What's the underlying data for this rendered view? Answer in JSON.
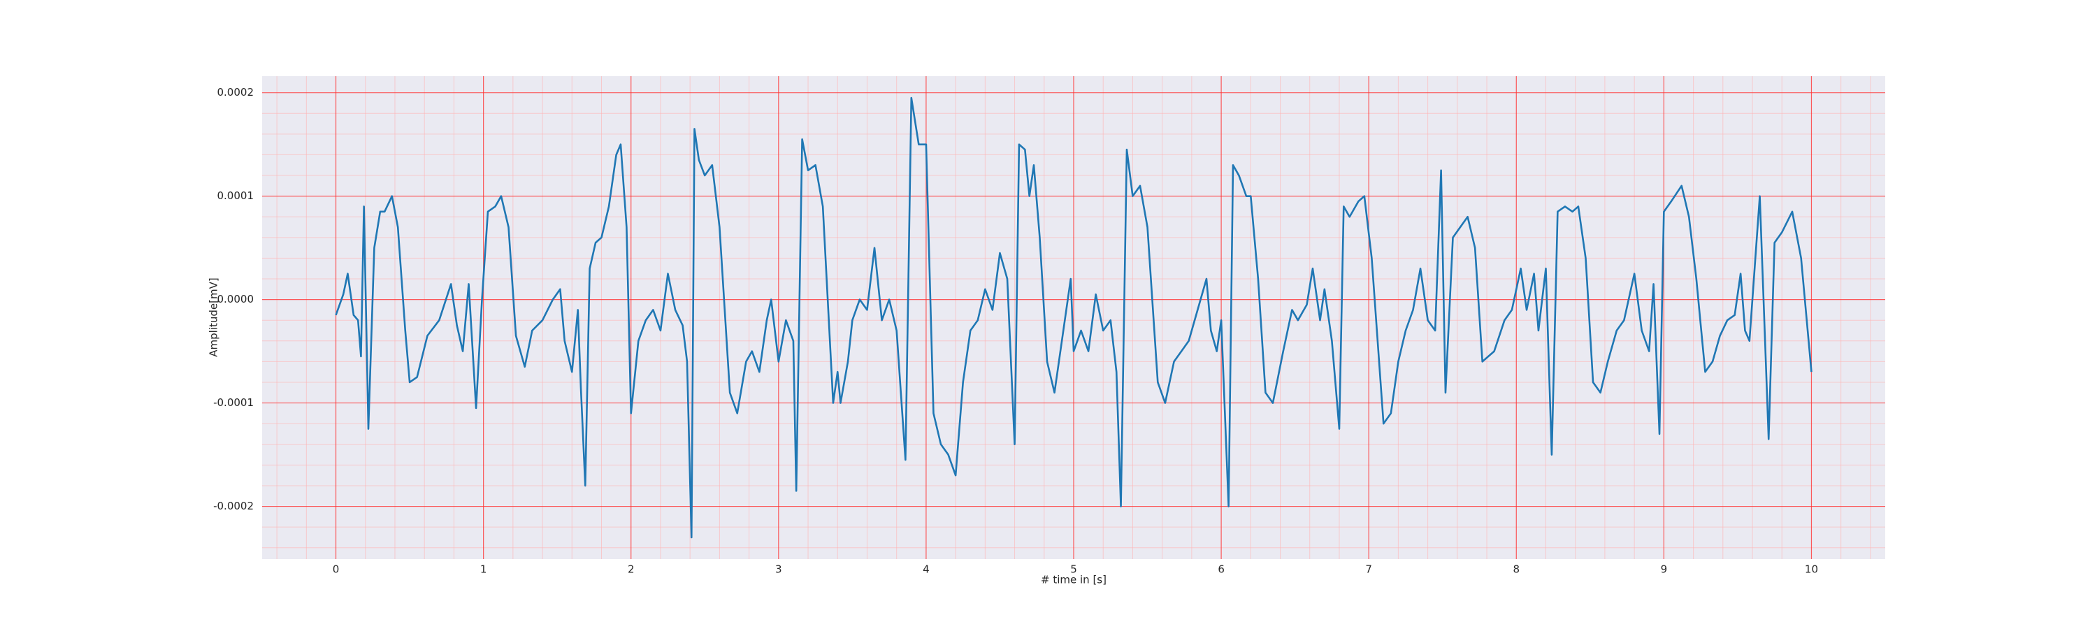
{
  "chart_data": {
    "type": "line",
    "x_label": "# time in [s]",
    "y_label": "Amplitude[mV]",
    "color": "#1f77b4",
    "grid": true,
    "minor_grid": true,
    "xlim": [
      -0.5,
      10.5
    ],
    "ylim": [
      -0.000251,
      0.000216
    ],
    "xticks": [
      0,
      1,
      2,
      3,
      4,
      5,
      6,
      7,
      8,
      9,
      10
    ],
    "yticks": [
      -0.0002,
      -0.0001,
      {
        "value": 0,
        "label": "0.0000"
      },
      0.0001,
      0.0002
    ],
    "x": [
      0,
      0.05,
      0.08,
      0.12,
      0.15,
      0.17,
      0.19,
      0.22,
      0.26,
      0.3,
      0.33,
      0.38,
      0.42,
      0.47,
      0.5,
      0.55,
      0.62,
      0.7,
      0.78,
      0.82,
      0.86,
      0.9,
      0.95,
      0.99,
      1.03,
      1.08,
      1.12,
      1.17,
      1.22,
      1.28,
      1.33,
      1.4,
      1.47,
      1.52,
      1.55,
      1.6,
      1.64,
      1.66,
      1.69,
      1.72,
      1.76,
      1.8,
      1.85,
      1.9,
      1.93,
      1.97,
      2.0,
      2.05,
      2.1,
      2.15,
      2.2,
      2.25,
      2.3,
      2.35,
      2.38,
      2.41,
      2.43,
      2.46,
      2.5,
      2.55,
      2.6,
      2.67,
      2.72,
      2.78,
      2.82,
      2.87,
      2.92,
      2.95,
      3.0,
      3.05,
      3.1,
      3.12,
      3.16,
      3.2,
      3.25,
      3.3,
      3.37,
      3.4,
      3.42,
      3.47,
      3.5,
      3.55,
      3.6,
      3.65,
      3.7,
      3.75,
      3.8,
      3.86,
      3.9,
      3.95,
      4.0,
      4.05,
      4.1,
      4.15,
      4.2,
      4.25,
      4.3,
      4.35,
      4.4,
      4.45,
      4.5,
      4.55,
      4.6,
      4.63,
      4.67,
      4.7,
      4.73,
      4.77,
      4.82,
      4.87,
      4.92,
      4.98,
      5.0,
      5.05,
      5.1,
      5.15,
      5.2,
      5.25,
      5.29,
      5.32,
      5.36,
      5.4,
      5.45,
      5.5,
      5.57,
      5.62,
      5.68,
      5.73,
      5.78,
      5.85,
      5.9,
      5.93,
      5.97,
      6.0,
      6.05,
      6.08,
      6.12,
      6.17,
      6.2,
      6.25,
      6.3,
      6.35,
      6.42,
      6.48,
      6.52,
      6.58,
      6.62,
      6.67,
      6.7,
      6.75,
      6.8,
      6.83,
      6.87,
      6.93,
      6.97,
      7.02,
      7.1,
      7.15,
      7.2,
      7.25,
      7.3,
      7.35,
      7.4,
      7.45,
      7.49,
      7.52,
      7.57,
      7.62,
      7.67,
      7.72,
      7.77,
      7.85,
      7.92,
      7.97,
      8.03,
      8.07,
      8.12,
      8.15,
      8.2,
      8.24,
      8.28,
      8.33,
      8.38,
      8.42,
      8.47,
      8.52,
      8.57,
      8.62,
      8.68,
      8.73,
      8.8,
      8.85,
      8.9,
      8.93,
      8.97,
      9.0,
      9.05,
      9.12,
      9.17,
      9.22,
      9.28,
      9.33,
      9.38,
      9.43,
      9.48,
      9.52,
      9.55,
      9.58,
      9.65,
      9.71,
      9.75,
      9.8,
      9.87,
      9.93,
      10.0
    ],
    "values": [
      -1.5e-05,
      5e-06,
      2.5e-05,
      -1.5e-05,
      -2e-05,
      -5.5e-05,
      9e-05,
      -0.000125,
      5e-05,
      8.5e-05,
      8.5e-05,
      0.0001,
      7e-05,
      -3e-05,
      -8e-05,
      -7.5e-05,
      -3.5e-05,
      -2e-05,
      1.5e-05,
      -2.5e-05,
      -5e-05,
      1.5e-05,
      -0.000105,
      0,
      8.5e-05,
      9e-05,
      0.0001,
      7e-05,
      -3.5e-05,
      -6.5e-05,
      -3e-05,
      -2e-05,
      0,
      1e-05,
      -4e-05,
      -7e-05,
      -1e-05,
      -8.5e-05,
      -0.00018,
      3e-05,
      5.5e-05,
      6e-05,
      9e-05,
      0.00014,
      0.00015,
      7e-05,
      -0.00011,
      -4e-05,
      -2e-05,
      -1e-05,
      -3e-05,
      2.5e-05,
      -1e-05,
      -2.5e-05,
      -6e-05,
      -0.00023,
      0.000165,
      0.000135,
      0.00012,
      0.00013,
      7e-05,
      -9e-05,
      -0.00011,
      -6e-05,
      -5e-05,
      -7e-05,
      -2e-05,
      0,
      -6e-05,
      -2e-05,
      -4e-05,
      -0.000185,
      0.000155,
      0.000125,
      0.00013,
      9e-05,
      -0.0001,
      -7e-05,
      -0.0001,
      -6e-05,
      -2e-05,
      0,
      -1e-05,
      5e-05,
      -2e-05,
      0,
      -3e-05,
      -0.000155,
      0.000195,
      0.00015,
      0.00015,
      -0.00011,
      -0.00014,
      -0.00015,
      -0.00017,
      -8e-05,
      -3e-05,
      -2e-05,
      1e-05,
      -1e-05,
      4.5e-05,
      2e-05,
      -0.00014,
      0.00015,
      0.000145,
      0.0001,
      0.00013,
      6e-05,
      -6e-05,
      -9e-05,
      -4e-05,
      2e-05,
      -5e-05,
      -3e-05,
      -5e-05,
      5e-06,
      -3e-05,
      -2e-05,
      -7e-05,
      -0.0002,
      0.000145,
      0.0001,
      0.00011,
      7e-05,
      -8e-05,
      -0.0001,
      -6e-05,
      -5e-05,
      -4e-05,
      -5e-06,
      2e-05,
      -3e-05,
      -5e-05,
      -2e-05,
      -0.0002,
      0.00013,
      0.00012,
      0.0001,
      0.0001,
      2e-05,
      -9e-05,
      -0.0001,
      -5e-05,
      -1e-05,
      -2e-05,
      -5e-06,
      3e-05,
      -2e-05,
      1e-05,
      -4e-05,
      -0.000125,
      9e-05,
      8e-05,
      9.5e-05,
      0.0001,
      4e-05,
      -0.00012,
      -0.00011,
      -6e-05,
      -3e-05,
      -1e-05,
      3e-05,
      -2e-05,
      -3e-05,
      0.000125,
      -9e-05,
      6e-05,
      7e-05,
      8e-05,
      5e-05,
      -6e-05,
      -5e-05,
      -2e-05,
      -1e-05,
      3e-05,
      -1e-05,
      2.5e-05,
      -3e-05,
      3e-05,
      -0.00015,
      8.5e-05,
      9e-05,
      8.5e-05,
      9e-05,
      4e-05,
      -8e-05,
      -9e-05,
      -6e-05,
      -3e-05,
      -2e-05,
      2.5e-05,
      -3e-05,
      -5e-05,
      1.5e-05,
      -0.00013,
      8.5e-05,
      9.5e-05,
      0.00011,
      8e-05,
      2e-05,
      -7e-05,
      -6e-05,
      -3.5e-05,
      -2e-05,
      -1.5e-05,
      2.5e-05,
      -3e-05,
      -4e-05,
      0.0001,
      -0.000135,
      5.5e-05,
      6.5e-05,
      8.5e-05,
      4e-05,
      -7e-05
    ]
  }
}
